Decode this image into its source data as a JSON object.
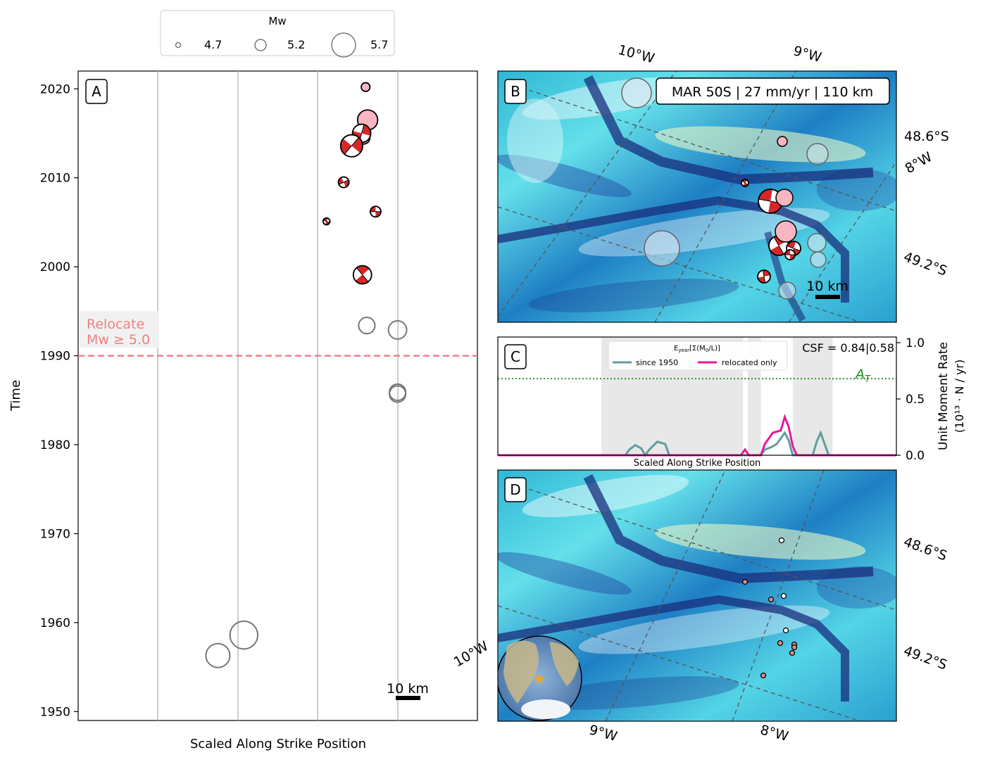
{
  "legend": {
    "title": "Mw",
    "entries": [
      {
        "label": "4.7",
        "mw": 4.7
      },
      {
        "label": "5.2",
        "mw": 5.2
      },
      {
        "label": "5.7",
        "mw": 5.7
      }
    ]
  },
  "panelA": {
    "letter": "A",
    "ylabel": "Time",
    "xlabel": "Scaled Along Strike Position",
    "scalebar": "10 km",
    "relocate_line1": "Relocate",
    "relocate_line2": "Mw ≥ 5.0",
    "relocate_year": 1990,
    "yticks": [
      "1950",
      "1960",
      "1970",
      "1980",
      "1990",
      "2000",
      "2010",
      "2020"
    ]
  },
  "panelB": {
    "letter": "B",
    "title": "MAR 50S | 27 mm/yr | 110 km",
    "lon_labels": [
      "10°W",
      "9°W"
    ],
    "lat_labels": [
      "48.6°S",
      "8°W",
      "49.2°S"
    ],
    "scalebar": "10 km"
  },
  "panelC": {
    "letter": "C",
    "legend_title": "E_year[Σ(M0/L)]",
    "legend_series": [
      "since 1950",
      "relocated only"
    ],
    "csf": "CSF = 0.84|0.58",
    "threshold_label": "A",
    "threshold_sub": "T",
    "xlabel": "Scaled Along Strike Position",
    "ylabel_line1": "Unit Moment Rate",
    "ylabel_line2": "(10¹³ · N / yr)",
    "yticks": [
      "0.0",
      "0.5",
      "1.0"
    ]
  },
  "panelD": {
    "letter": "D",
    "lat_labels": [
      "48.6°S",
      "49.2°S"
    ],
    "lon_labels": [
      "10°W",
      "9°W",
      "8°W"
    ]
  },
  "colors": {
    "relocate": "#f08080",
    "since1950": "#5f9ea0",
    "relocated_only": "#e6199a",
    "threshold": "#228b22",
    "pink": "#f7b6c2",
    "beachball": "#d62728"
  },
  "chart_data": {
    "type": "scatter",
    "xlabel": "Scaled Along Strike Position",
    "ylabel": "Time",
    "ylim": [
      1949,
      2022
    ],
    "events": [
      {
        "x": 0.72,
        "year": 2020.2,
        "mw": 4.9,
        "kind": "pink"
      },
      {
        "x": 0.725,
        "year": 2016.5,
        "mw": 5.5,
        "kind": "pink"
      },
      {
        "x": 0.715,
        "year": 2014.5,
        "mw": 5.1,
        "kind": "pink"
      },
      {
        "x": 0.71,
        "year": 2015.0,
        "mw": 5.4,
        "kind": "mech"
      },
      {
        "x": 0.685,
        "year": 2013.6,
        "mw": 5.6,
        "kind": "mech"
      },
      {
        "x": 0.665,
        "year": 2009.5,
        "mw": 5.0,
        "kind": "mech"
      },
      {
        "x": 0.745,
        "year": 2006.2,
        "mw": 5.0,
        "kind": "mech"
      },
      {
        "x": 0.622,
        "year": 2005.1,
        "mw": 4.8,
        "kind": "mech"
      },
      {
        "x": 0.712,
        "year": 1999.1,
        "mw": 5.4,
        "kind": "mech"
      },
      {
        "x": 0.723,
        "year": 1993.4,
        "mw": 5.3,
        "kind": "prior"
      },
      {
        "x": 0.8,
        "year": 1992.9,
        "mw": 5.4,
        "kind": "prior"
      },
      {
        "x": 0.8,
        "year": 1985.7,
        "mw": 5.3,
        "kind": "prior"
      },
      {
        "x": 0.8,
        "year": 1985.9,
        "mw": 5.3,
        "kind": "prior"
      },
      {
        "x": 0.415,
        "year": 1958.6,
        "mw": 5.9,
        "kind": "prior"
      },
      {
        "x": 0.35,
        "year": 1956.3,
        "mw": 5.7,
        "kind": "prior"
      }
    ],
    "moment_rate": {
      "xlim": [
        0,
        1
      ],
      "ylim": [
        0,
        1.05
      ],
      "threshold": 0.68,
      "since_1950": [
        [
          0.32,
          0
        ],
        [
          0.33,
          0.05
        ],
        [
          0.345,
          0.09
        ],
        [
          0.36,
          0.06
        ],
        [
          0.37,
          0
        ],
        [
          0.38,
          0.05
        ],
        [
          0.4,
          0.12
        ],
        [
          0.42,
          0.1
        ],
        [
          0.43,
          0
        ],
        [
          0.66,
          0
        ],
        [
          0.67,
          0.05
        ],
        [
          0.685,
          0.07
        ],
        [
          0.7,
          0.1
        ],
        [
          0.72,
          0.2
        ],
        [
          0.73,
          0.13
        ],
        [
          0.74,
          0
        ],
        [
          0.79,
          0
        ],
        [
          0.8,
          0.12
        ],
        [
          0.81,
          0.2
        ],
        [
          0.82,
          0.1
        ],
        [
          0.83,
          0
        ]
      ],
      "relocated_only": [
        [
          0.0,
          0
        ],
        [
          0.61,
          0
        ],
        [
          0.62,
          0.05
        ],
        [
          0.63,
          0
        ],
        [
          0.66,
          0
        ],
        [
          0.67,
          0.1
        ],
        [
          0.69,
          0.2
        ],
        [
          0.71,
          0.22
        ],
        [
          0.72,
          0.34
        ],
        [
          0.73,
          0.25
        ],
        [
          0.74,
          0.08
        ],
        [
          0.75,
          0
        ],
        [
          1.0,
          0
        ]
      ],
      "gray_bands": [
        [
          0.26,
          0.615
        ],
        [
          0.627,
          0.66
        ],
        [
          0.74,
          0.84
        ]
      ]
    }
  }
}
